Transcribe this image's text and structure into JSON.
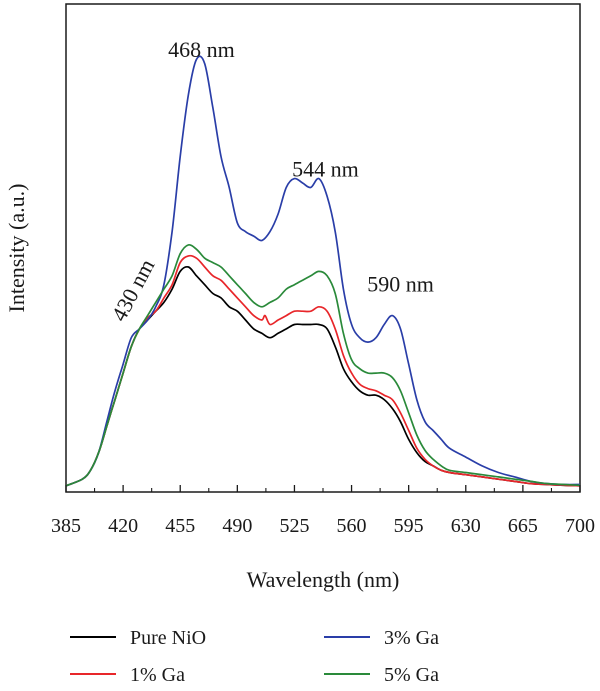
{
  "chart_data": {
    "type": "line",
    "title": "",
    "xlabel": "Wavelength (nm)",
    "ylabel": "Intensity (a.u.)",
    "xlim": [
      385,
      700
    ],
    "ylim": [
      0,
      1.0
    ],
    "x_ticks": [
      385,
      420,
      455,
      490,
      525,
      560,
      595,
      630,
      665,
      700
    ],
    "x_tick_labels": [
      "385",
      "420",
      "455",
      "490",
      "525",
      "560",
      "595",
      "630",
      "665",
      "700"
    ],
    "y_tick_labels_shown": false,
    "grid": false,
    "legend_position": "bottom",
    "annotations": [
      {
        "text": "468 nm",
        "x": 468,
        "y": 0.975,
        "rotation": 0
      },
      {
        "text": "544 nm",
        "x": 544,
        "y": 0.705,
        "rotation": 0
      },
      {
        "text": "590 nm",
        "x": 590,
        "y": 0.445,
        "rotation": 0
      },
      {
        "text": "430 nm",
        "x": 430,
        "y": 0.44,
        "rotation": -62
      }
    ],
    "series": [
      {
        "name": "Pure NiO",
        "color": "#000000",
        "points": [
          [
            385,
            0.005
          ],
          [
            395,
            0.02
          ],
          [
            400,
            0.04
          ],
          [
            405,
            0.08
          ],
          [
            410,
            0.14
          ],
          [
            415,
            0.2
          ],
          [
            420,
            0.26
          ],
          [
            425,
            0.32
          ],
          [
            430,
            0.36
          ],
          [
            435,
            0.38
          ],
          [
            440,
            0.4
          ],
          [
            445,
            0.42
          ],
          [
            450,
            0.45
          ],
          [
            455,
            0.49
          ],
          [
            460,
            0.5
          ],
          [
            465,
            0.48
          ],
          [
            470,
            0.46
          ],
          [
            475,
            0.44
          ],
          [
            480,
            0.43
          ],
          [
            485,
            0.41
          ],
          [
            490,
            0.4
          ],
          [
            495,
            0.38
          ],
          [
            500,
            0.36
          ],
          [
            505,
            0.35
          ],
          [
            510,
            0.34
          ],
          [
            515,
            0.35
          ],
          [
            520,
            0.36
          ],
          [
            525,
            0.37
          ],
          [
            530,
            0.37
          ],
          [
            535,
            0.37
          ],
          [
            540,
            0.37
          ],
          [
            545,
            0.36
          ],
          [
            550,
            0.32
          ],
          [
            555,
            0.27
          ],
          [
            560,
            0.24
          ],
          [
            565,
            0.22
          ],
          [
            570,
            0.21
          ],
          [
            575,
            0.21
          ],
          [
            580,
            0.2
          ],
          [
            585,
            0.18
          ],
          [
            590,
            0.15
          ],
          [
            595,
            0.11
          ],
          [
            600,
            0.08
          ],
          [
            605,
            0.06
          ],
          [
            610,
            0.05
          ],
          [
            615,
            0.04
          ],
          [
            620,
            0.035
          ],
          [
            630,
            0.03
          ],
          [
            640,
            0.025
          ],
          [
            650,
            0.02
          ],
          [
            660,
            0.015
          ],
          [
            670,
            0.01
          ],
          [
            680,
            0.008
          ],
          [
            690,
            0.006
          ],
          [
            700,
            0.005
          ]
        ]
      },
      {
        "name": "1% Ga",
        "color": "#e8262a",
        "points": [
          [
            385,
            0.005
          ],
          [
            395,
            0.02
          ],
          [
            400,
            0.04
          ],
          [
            405,
            0.08
          ],
          [
            410,
            0.14
          ],
          [
            415,
            0.2
          ],
          [
            420,
            0.26
          ],
          [
            425,
            0.32
          ],
          [
            430,
            0.36
          ],
          [
            435,
            0.385
          ],
          [
            440,
            0.4
          ],
          [
            445,
            0.43
          ],
          [
            450,
            0.46
          ],
          [
            455,
            0.51
          ],
          [
            460,
            0.525
          ],
          [
            465,
            0.52
          ],
          [
            470,
            0.5
          ],
          [
            475,
            0.48
          ],
          [
            480,
            0.47
          ],
          [
            485,
            0.45
          ],
          [
            490,
            0.43
          ],
          [
            495,
            0.41
          ],
          [
            500,
            0.39
          ],
          [
            505,
            0.38
          ],
          [
            507,
            0.39
          ],
          [
            510,
            0.37
          ],
          [
            515,
            0.38
          ],
          [
            520,
            0.39
          ],
          [
            525,
            0.4
          ],
          [
            530,
            0.4
          ],
          [
            535,
            0.4
          ],
          [
            540,
            0.41
          ],
          [
            545,
            0.4
          ],
          [
            550,
            0.36
          ],
          [
            555,
            0.3
          ],
          [
            560,
            0.26
          ],
          [
            565,
            0.235
          ],
          [
            570,
            0.225
          ],
          [
            575,
            0.22
          ],
          [
            580,
            0.21
          ],
          [
            585,
            0.2
          ],
          [
            590,
            0.17
          ],
          [
            595,
            0.13
          ],
          [
            600,
            0.09
          ],
          [
            605,
            0.065
          ],
          [
            610,
            0.05
          ],
          [
            615,
            0.04
          ],
          [
            620,
            0.035
          ],
          [
            630,
            0.03
          ],
          [
            640,
            0.025
          ],
          [
            650,
            0.02
          ],
          [
            660,
            0.015
          ],
          [
            670,
            0.01
          ],
          [
            680,
            0.008
          ],
          [
            690,
            0.006
          ],
          [
            700,
            0.005
          ]
        ]
      },
      {
        "name": "3% Ga",
        "color": "#2a3ea8",
        "points": [
          [
            385,
            0.005
          ],
          [
            395,
            0.02
          ],
          [
            400,
            0.04
          ],
          [
            405,
            0.08
          ],
          [
            410,
            0.15
          ],
          [
            415,
            0.22
          ],
          [
            420,
            0.28
          ],
          [
            425,
            0.34
          ],
          [
            430,
            0.36
          ],
          [
            435,
            0.38
          ],
          [
            440,
            0.41
          ],
          [
            445,
            0.46
          ],
          [
            450,
            0.58
          ],
          [
            455,
            0.75
          ],
          [
            460,
            0.89
          ],
          [
            465,
            0.97
          ],
          [
            470,
            0.96
          ],
          [
            475,
            0.86
          ],
          [
            480,
            0.75
          ],
          [
            485,
            0.68
          ],
          [
            490,
            0.6
          ],
          [
            495,
            0.58
          ],
          [
            500,
            0.57
          ],
          [
            505,
            0.56
          ],
          [
            510,
            0.58
          ],
          [
            515,
            0.62
          ],
          [
            520,
            0.68
          ],
          [
            525,
            0.7
          ],
          [
            530,
            0.69
          ],
          [
            535,
            0.68
          ],
          [
            540,
            0.7
          ],
          [
            545,
            0.66
          ],
          [
            550,
            0.58
          ],
          [
            555,
            0.45
          ],
          [
            560,
            0.37
          ],
          [
            565,
            0.34
          ],
          [
            570,
            0.33
          ],
          [
            575,
            0.34
          ],
          [
            580,
            0.37
          ],
          [
            585,
            0.39
          ],
          [
            590,
            0.36
          ],
          [
            595,
            0.28
          ],
          [
            600,
            0.2
          ],
          [
            605,
            0.15
          ],
          [
            610,
            0.13
          ],
          [
            615,
            0.11
          ],
          [
            620,
            0.09
          ],
          [
            630,
            0.07
          ],
          [
            640,
            0.05
          ],
          [
            650,
            0.035
          ],
          [
            660,
            0.025
          ],
          [
            670,
            0.015
          ],
          [
            680,
            0.01
          ],
          [
            690,
            0.008
          ],
          [
            700,
            0.008
          ]
        ]
      },
      {
        "name": "5% Ga",
        "color": "#2a8a3a",
        "points": [
          [
            385,
            0.005
          ],
          [
            395,
            0.02
          ],
          [
            400,
            0.04
          ],
          [
            405,
            0.08
          ],
          [
            410,
            0.14
          ],
          [
            415,
            0.2
          ],
          [
            420,
            0.26
          ],
          [
            425,
            0.32
          ],
          [
            430,
            0.36
          ],
          [
            435,
            0.39
          ],
          [
            440,
            0.42
          ],
          [
            445,
            0.45
          ],
          [
            450,
            0.48
          ],
          [
            455,
            0.53
          ],
          [
            460,
            0.55
          ],
          [
            465,
            0.54
          ],
          [
            470,
            0.52
          ],
          [
            475,
            0.51
          ],
          [
            480,
            0.5
          ],
          [
            485,
            0.48
          ],
          [
            490,
            0.46
          ],
          [
            495,
            0.44
          ],
          [
            500,
            0.42
          ],
          [
            505,
            0.41
          ],
          [
            510,
            0.42
          ],
          [
            515,
            0.43
          ],
          [
            520,
            0.45
          ],
          [
            525,
            0.46
          ],
          [
            530,
            0.47
          ],
          [
            535,
            0.48
          ],
          [
            540,
            0.49
          ],
          [
            545,
            0.48
          ],
          [
            550,
            0.44
          ],
          [
            555,
            0.35
          ],
          [
            560,
            0.29
          ],
          [
            565,
            0.27
          ],
          [
            570,
            0.26
          ],
          [
            575,
            0.26
          ],
          [
            580,
            0.26
          ],
          [
            585,
            0.25
          ],
          [
            590,
            0.22
          ],
          [
            595,
            0.17
          ],
          [
            600,
            0.12
          ],
          [
            605,
            0.085
          ],
          [
            610,
            0.065
          ],
          [
            615,
            0.05
          ],
          [
            620,
            0.04
          ],
          [
            630,
            0.035
          ],
          [
            640,
            0.03
          ],
          [
            650,
            0.025
          ],
          [
            660,
            0.02
          ],
          [
            670,
            0.015
          ],
          [
            680,
            0.01
          ],
          [
            690,
            0.008
          ],
          [
            700,
            0.006
          ]
        ]
      }
    ]
  }
}
